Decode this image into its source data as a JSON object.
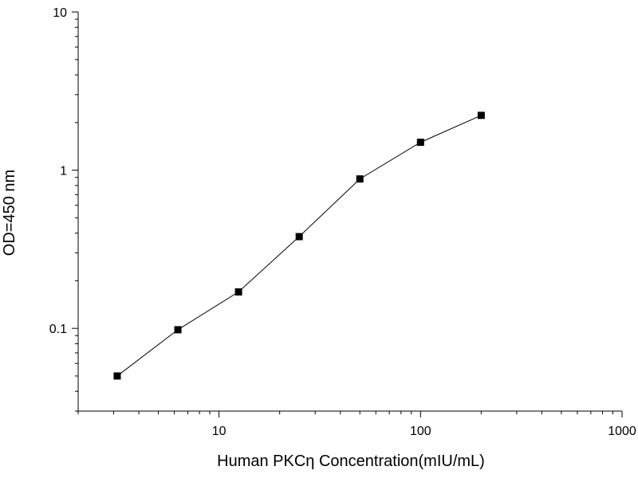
{
  "chart_data": {
    "type": "scatter",
    "title": "",
    "xlabel": "Human PKCη  Concentration(mIU/mL)",
    "ylabel": "OD=450 nm",
    "xscale": "log",
    "yscale": "log",
    "xlim": [
      2,
      1000
    ],
    "ylim": [
      0.03,
      10
    ],
    "x_major_ticks": [
      10,
      100,
      1000
    ],
    "y_major_ticks": [
      0.1,
      1,
      10
    ],
    "x_tick_labels": [
      "10",
      "100",
      "1000"
    ],
    "y_tick_labels": [
      "0.1",
      "1",
      "10"
    ],
    "grid": false,
    "legend": "none",
    "marker": "square",
    "connected": true,
    "series": [
      {
        "x": [
          3.125,
          6.25,
          12.5,
          25,
          50,
          100,
          200
        ],
        "y": [
          0.05,
          0.098,
          0.17,
          0.38,
          0.88,
          1.5,
          2.22
        ]
      }
    ]
  }
}
